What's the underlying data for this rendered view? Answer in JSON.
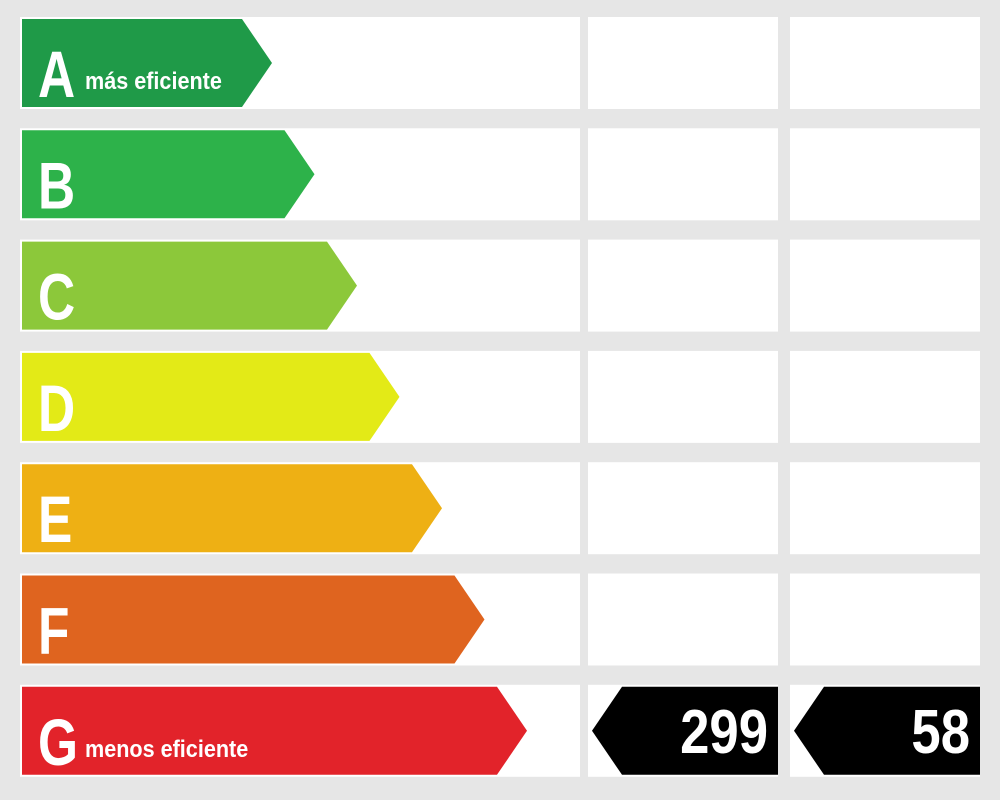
{
  "rows": [
    {
      "letter": "A",
      "label": "más eficiente",
      "color": "#1f9a48"
    },
    {
      "letter": "B",
      "color": "#2db24a"
    },
    {
      "letter": "C",
      "color": "#8cc83a"
    },
    {
      "letter": "D",
      "color": "#e3ea17"
    },
    {
      "letter": "E",
      "color": "#eeb014"
    },
    {
      "letter": "F",
      "color": "#df641f"
    },
    {
      "letter": "G",
      "label": "menos eficiente",
      "color": "#e2232a",
      "values": [
        299,
        58
      ]
    }
  ]
}
